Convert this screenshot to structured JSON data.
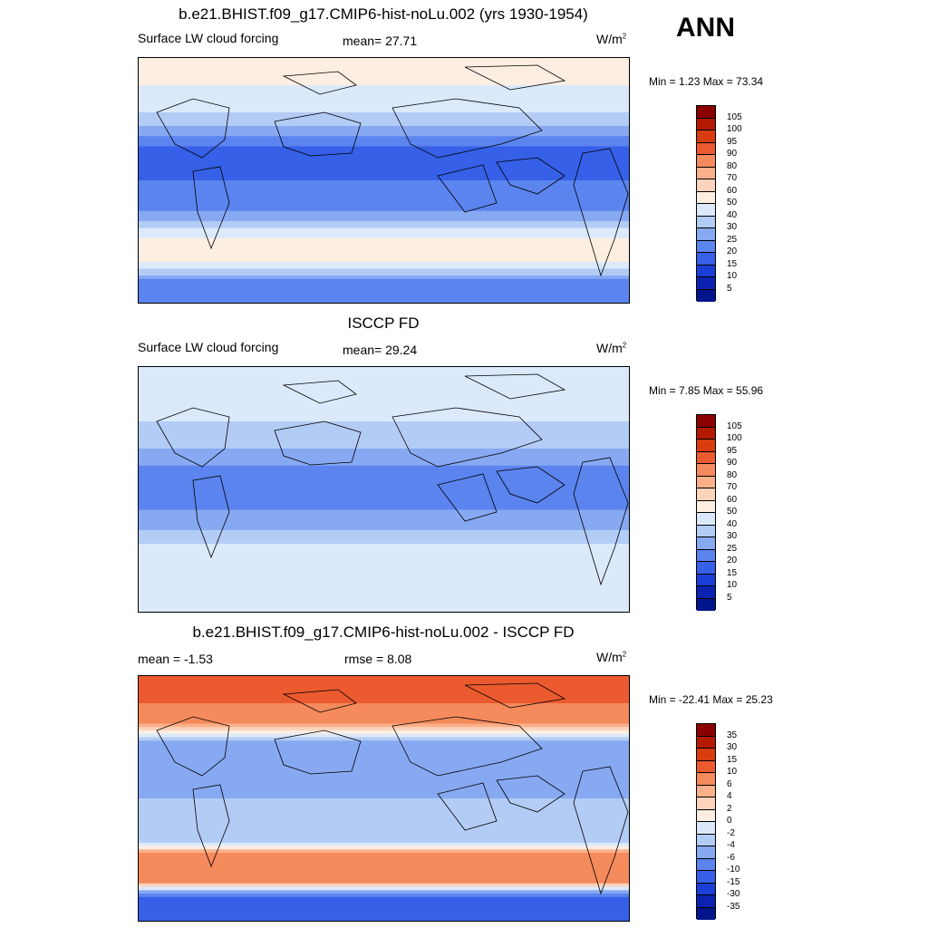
{
  "season": "ANN",
  "panels": [
    {
      "title": "b.e21.BHIST.f09_g17.CMIP6-hist-noLu.002 (yrs 1930-1954)",
      "left_label": "Surface LW cloud forcing",
      "mid_label": "mean=  27.71",
      "units_base": "W/m",
      "units_exp": "2",
      "minmax": "Min =   1.23 Max =  73.34",
      "colorbar_levels": [
        "105",
        "100",
        "95",
        "90",
        "80",
        "70",
        "60",
        "50",
        "40",
        "30",
        "25",
        "20",
        "15",
        "10",
        "5"
      ],
      "colorbar_colors": [
        "#8b0000",
        "#b31a00",
        "#d93d0f",
        "#ec5a2f",
        "#f58a5c",
        "#fcb08a",
        "#fdd3bb",
        "#fdeee2",
        "#dbe9fb",
        "#b3ccf5",
        "#86a9f2",
        "#5b84ef",
        "#3660e8",
        "#1b3fd6",
        "#0c22b0",
        "#03158a"
      ]
    },
    {
      "title": "ISCCP FD",
      "left_label": "Surface LW cloud forcing",
      "mid_label": "mean=  29.24",
      "units_base": "W/m",
      "units_exp": "2",
      "minmax": "Min =   7.85 Max =  55.96",
      "colorbar_levels": [
        "105",
        "100",
        "95",
        "90",
        "80",
        "70",
        "60",
        "50",
        "40",
        "30",
        "25",
        "20",
        "15",
        "10",
        "5"
      ],
      "colorbar_colors": [
        "#8b0000",
        "#b31a00",
        "#d93d0f",
        "#ec5a2f",
        "#f58a5c",
        "#fcb08a",
        "#fdd3bb",
        "#fdeee2",
        "#dbe9fb",
        "#b3ccf5",
        "#86a9f2",
        "#5b84ef",
        "#3660e8",
        "#1b3fd6",
        "#0c22b0",
        "#03158a"
      ]
    },
    {
      "title": "b.e21.BHIST.f09_g17.CMIP6-hist-noLu.002 - ISCCP FD",
      "left_label": "mean =  -1.53",
      "mid_label": "rmse =   8.08",
      "units_base": "W/m",
      "units_exp": "2",
      "minmax": "Min = -22.41 Max =  25.23",
      "colorbar_levels": [
        "35",
        "30",
        "15",
        "10",
        "6",
        "4",
        "2",
        "0",
        "-2",
        "-4",
        "-6",
        "-10",
        "-15",
        "-30",
        "-35"
      ],
      "colorbar_colors": [
        "#8b0000",
        "#b31a00",
        "#d93d0f",
        "#ec5a2f",
        "#f58a5c",
        "#fcb08a",
        "#fdd3bb",
        "#fdeee2",
        "#dbe9fb",
        "#b3ccf5",
        "#86a9f2",
        "#5b84ef",
        "#3660e8",
        "#1b3fd6",
        "#0c22b0",
        "#03158a"
      ]
    }
  ],
  "chart_data": [
    {
      "type": "heatmap",
      "title": "b.e21.BHIST.f09_g17.CMIP6-hist-noLu.002 (yrs 1930-1954)",
      "variable": "Surface LW cloud forcing",
      "units": "W/m2",
      "mean": 27.71,
      "min": 1.23,
      "max": 73.34,
      "levels": [
        5,
        10,
        15,
        20,
        25,
        30,
        40,
        50,
        60,
        70,
        80,
        90,
        95,
        100,
        105
      ],
      "band_values": [
        {
          "lat": 90,
          "value": 55
        },
        {
          "lat": 70,
          "value": 50
        },
        {
          "lat": 55,
          "value": 45
        },
        {
          "lat": 40,
          "value": 30
        },
        {
          "lat": 25,
          "value": 20
        },
        {
          "lat": 10,
          "value": 15
        },
        {
          "lat": 0,
          "value": 20
        },
        {
          "lat": -15,
          "value": 20
        },
        {
          "lat": -30,
          "value": 30
        },
        {
          "lat": -45,
          "value": 55
        },
        {
          "lat": -60,
          "value": 50
        },
        {
          "lat": -75,
          "value": 20
        },
        {
          "lat": -90,
          "value": 25
        }
      ]
    },
    {
      "type": "heatmap",
      "title": "ISCCP FD",
      "variable": "Surface LW cloud forcing",
      "units": "W/m2",
      "mean": 29.24,
      "min": 7.85,
      "max": 55.96,
      "levels": [
        5,
        10,
        15,
        20,
        25,
        30,
        40,
        50,
        60,
        70,
        80,
        90,
        95,
        100,
        105
      ],
      "band_values": [
        {
          "lat": 90,
          "value": 40
        },
        {
          "lat": 70,
          "value": 45
        },
        {
          "lat": 55,
          "value": 42
        },
        {
          "lat": 40,
          "value": 35
        },
        {
          "lat": 25,
          "value": 28
        },
        {
          "lat": 10,
          "value": 22
        },
        {
          "lat": 0,
          "value": 22
        },
        {
          "lat": -15,
          "value": 25
        },
        {
          "lat": -30,
          "value": 30
        },
        {
          "lat": -45,
          "value": 45
        },
        {
          "lat": -60,
          "value": 45
        },
        {
          "lat": -75,
          "value": 40
        },
        {
          "lat": -90,
          "value": 40
        }
      ]
    },
    {
      "type": "heatmap",
      "title": "b.e21.BHIST.f09_g17.CMIP6-hist-noLu.002 - ISCCP FD",
      "units": "W/m2",
      "mean": -1.53,
      "rmse": 8.08,
      "min": -22.41,
      "max": 25.23,
      "levels": [
        -35,
        -30,
        -15,
        -10,
        -6,
        -4,
        -2,
        0,
        2,
        4,
        6,
        10,
        15,
        30,
        35
      ],
      "band_values": [
        {
          "lat": 90,
          "value": 10
        },
        {
          "lat": 70,
          "value": 10
        },
        {
          "lat": 55,
          "value": 6
        },
        {
          "lat": 40,
          "value": -6
        },
        {
          "lat": 25,
          "value": -6
        },
        {
          "lat": 10,
          "value": -6
        },
        {
          "lat": 0,
          "value": -4
        },
        {
          "lat": -15,
          "value": -4
        },
        {
          "lat": -30,
          "value": -4
        },
        {
          "lat": -45,
          "value": 10
        },
        {
          "lat": -60,
          "value": 8
        },
        {
          "lat": -75,
          "value": -15
        },
        {
          "lat": -90,
          "value": -15
        }
      ]
    }
  ]
}
